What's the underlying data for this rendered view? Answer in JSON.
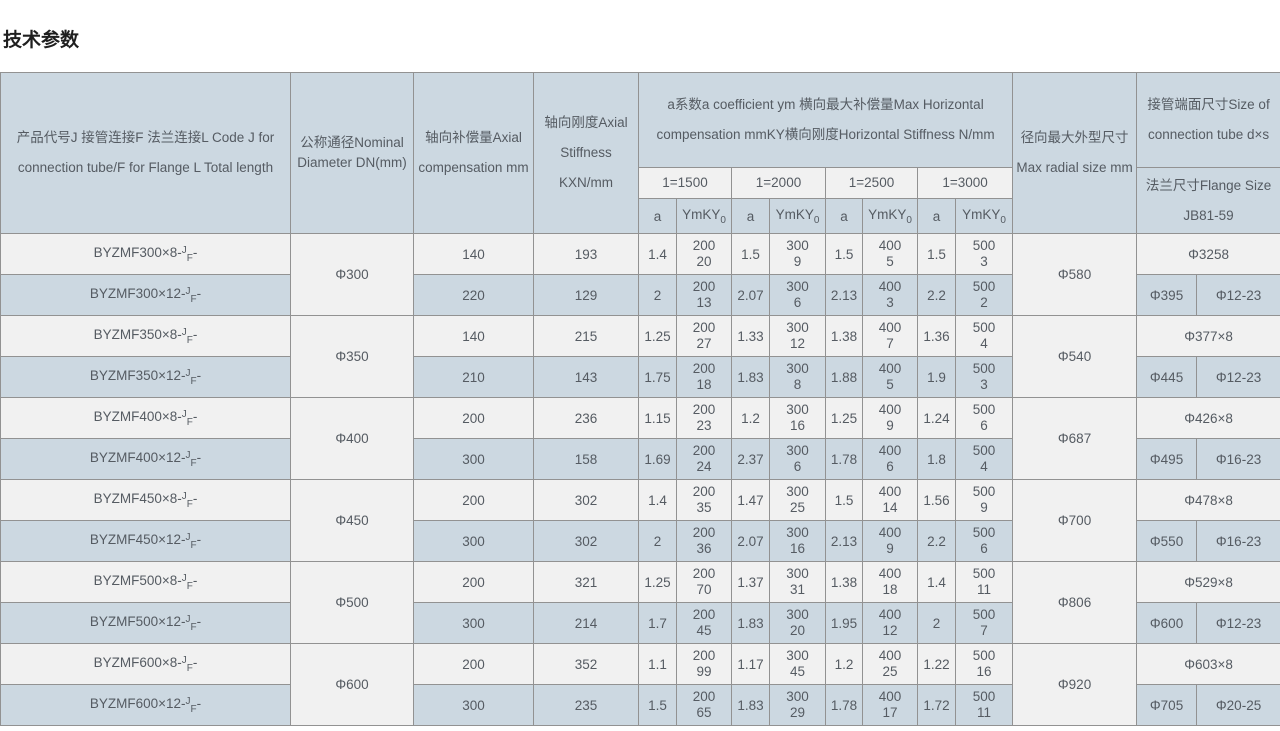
{
  "page_title": "技术参数",
  "colors": {
    "header_bg": "#ccd8e1",
    "row_light_bg": "#f1f1f1",
    "row_blue_bg": "#ccd8e1",
    "merged_cell_bg": "#f0f0f0",
    "border": "#929292",
    "text": "#555b62",
    "title_text": "#1f1f1f"
  },
  "table": {
    "header": {
      "col_product": "产品代号J 接管连接F 法兰连接L Code J for connection tube/F for Flange L Total length",
      "col_dn": "公称通径Nominal Diameter DN(mm)",
      "col_axial_comp": "轴向补偿量Axial compensation mm",
      "col_axial_stiff": "轴向刚度Axial Stiffness KXN/mm",
      "col_group": "a系数a coefficient ym 横向最大补偿量Max Horizontal compensation mmKY横向刚度Horizontal Stiffness N/mm",
      "col_radial": "径向最大外型尺寸 Max radial size mm",
      "col_tube": "接管端面尺寸Size of connection tube d×s",
      "col_flange": "法兰尺寸Flange Size JB81-59",
      "subgroups": [
        "1=1500",
        "1=2000",
        "1=2500",
        "1=3000"
      ],
      "sub_a": "a",
      "sub_ym_base": "YmKY",
      "sub_ym_sub": "0"
    },
    "groups": [
      {
        "dn": "Φ300",
        "radial": "Φ580",
        "tube": "Φ3258",
        "flange_d": "Φ395",
        "flange_holes": "Φ12-23",
        "rows": [
          {
            "code": {
              "text": "BYZMF300×8-",
              "sup": "J",
              "sub": "F",
              "tail": "-"
            },
            "axial_compensation": "140",
            "axial_stiffness": "193",
            "a": [
              "1.4",
              "1.5",
              "1.5",
              "1.5"
            ],
            "ym": [
              [
                "200",
                "20"
              ],
              [
                "300",
                "9"
              ],
              [
                "400",
                "5"
              ],
              [
                "500",
                "3"
              ]
            ]
          },
          {
            "code": {
              "text": "BYZMF300×12-",
              "sup": "J",
              "sub": "F",
              "tail": "-"
            },
            "axial_compensation": "220",
            "axial_stiffness": "129",
            "a": [
              "2",
              "2.07",
              "2.13",
              "2.2"
            ],
            "ym": [
              [
                "200",
                "13"
              ],
              [
                "300",
                "6"
              ],
              [
                "400",
                "3"
              ],
              [
                "500",
                "2"
              ]
            ]
          }
        ]
      },
      {
        "dn": "Φ350",
        "radial": "Φ540",
        "tube": "Φ377×8",
        "flange_d": "Φ445",
        "flange_holes": "Φ12-23",
        "rows": [
          {
            "code": {
              "text": "BYZMF350×8-",
              "sup": "J",
              "sub": "F",
              "tail": "-"
            },
            "axial_compensation": "140",
            "axial_stiffness": "215",
            "a": [
              "1.25",
              "1.33",
              "1.38",
              "1.36"
            ],
            "ym": [
              [
                "200",
                "27"
              ],
              [
                "300",
                "12"
              ],
              [
                "400",
                "7"
              ],
              [
                "500",
                "4"
              ]
            ]
          },
          {
            "code": {
              "text": "BYZMF350×12-",
              "sup": "J",
              "sub": "F",
              "tail": "-"
            },
            "axial_compensation": "210",
            "axial_stiffness": "143",
            "a": [
              "1.75",
              "1.83",
              "1.88",
              "1.9"
            ],
            "ym": [
              [
                "200",
                "18"
              ],
              [
                "300",
                "8"
              ],
              [
                "400",
                "5"
              ],
              [
                "500",
                "3"
              ]
            ]
          }
        ]
      },
      {
        "dn": "Φ400",
        "radial": "Φ687",
        "tube": "Φ426×8",
        "flange_d": "Φ495",
        "flange_holes": "Φ16-23",
        "rows": [
          {
            "code": {
              "text": "BYZMF400×8-",
              "sup": "J",
              "sub": "F",
              "tail": "-"
            },
            "axial_compensation": "200",
            "axial_stiffness": "236",
            "a": [
              "1.15",
              "1.2",
              "1.25",
              "1.24"
            ],
            "ym": [
              [
                "200",
                "23"
              ],
              [
                "300",
                "16"
              ],
              [
                "400",
                "9"
              ],
              [
                "500",
                "6"
              ]
            ]
          },
          {
            "code": {
              "text": "BYZMF400×12-",
              "sup": "J",
              "sub": "F",
              "tail": "-"
            },
            "axial_compensation": "300",
            "axial_stiffness": "158",
            "a": [
              "1.69",
              "2.37",
              "1.78",
              "1.8"
            ],
            "ym": [
              [
                "200",
                "24"
              ],
              [
                "300",
                "6"
              ],
              [
                "400",
                "6"
              ],
              [
                "500",
                "4"
              ]
            ]
          }
        ]
      },
      {
        "dn": "Φ450",
        "radial": "Φ700",
        "tube": "Φ478×8",
        "flange_d": "Φ550",
        "flange_holes": "Φ16-23",
        "rows": [
          {
            "code": {
              "text": "BYZMF450×8-",
              "sup": "J",
              "sub": "F",
              "tail": "-"
            },
            "axial_compensation": "200",
            "axial_stiffness": "302",
            "a": [
              "1.4",
              "1.47",
              "1.5",
              "1.56"
            ],
            "ym": [
              [
                "200",
                "35"
              ],
              [
                "300",
                "25"
              ],
              [
                "400",
                "14"
              ],
              [
                "500",
                "9"
              ]
            ]
          },
          {
            "code": {
              "text": "BYZMF450×12-",
              "sup": "J",
              "sub": "F",
              "tail": "-"
            },
            "axial_compensation": "300",
            "axial_stiffness": "302",
            "a": [
              "2",
              "2.07",
              "2.13",
              "2.2"
            ],
            "ym": [
              [
                "200",
                "36"
              ],
              [
                "300",
                "16"
              ],
              [
                "400",
                "9"
              ],
              [
                "500",
                "6"
              ]
            ]
          }
        ]
      },
      {
        "dn": "Φ500",
        "radial": "Φ806",
        "tube": "Φ529×8",
        "flange_d": "Φ600",
        "flange_holes": "Φ12-23",
        "rows": [
          {
            "code": {
              "text": "BYZMF500×8-",
              "sup": "J",
              "sub": "F",
              "tail": "-"
            },
            "axial_compensation": "200",
            "axial_stiffness": "321",
            "a": [
              "1.25",
              "1.37",
              "1.38",
              "1.4"
            ],
            "ym": [
              [
                "200",
                "70"
              ],
              [
                "300",
                "31"
              ],
              [
                "400",
                "18"
              ],
              [
                "500",
                "11"
              ]
            ]
          },
          {
            "code": {
              "text": "BYZMF500×12-",
              "sup": "J",
              "sub": "F",
              "tail": "-"
            },
            "axial_compensation": "300",
            "axial_stiffness": "214",
            "a": [
              "1.7",
              "1.83",
              "1.95",
              "2"
            ],
            "ym": [
              [
                "200",
                "45"
              ],
              [
                "300",
                "20"
              ],
              [
                "400",
                "12"
              ],
              [
                "500",
                "7"
              ]
            ]
          }
        ]
      },
      {
        "dn": "Φ600",
        "radial": "Φ920",
        "tube": "Φ603×8",
        "flange_d": "Φ705",
        "flange_holes": "Φ20-25",
        "rows": [
          {
            "code": {
              "text": "BYZMF600×8-",
              "sup": "J",
              "sub": "F",
              "tail": "-"
            },
            "axial_compensation": "200",
            "axial_stiffness": "352",
            "a": [
              "1.1",
              "1.17",
              "1.2",
              "1.22"
            ],
            "ym": [
              [
                "200",
                "99"
              ],
              [
                "300",
                "45"
              ],
              [
                "400",
                "25"
              ],
              [
                "500",
                "16"
              ]
            ]
          },
          {
            "code": {
              "text": "BYZMF600×12-",
              "sup": "J",
              "sub": "F",
              "tail": "-"
            },
            "axial_compensation": "300",
            "axial_stiffness": "235",
            "a": [
              "1.5",
              "1.83",
              "1.78",
              "1.72"
            ],
            "ym": [
              [
                "200",
                "65"
              ],
              [
                "300",
                "29"
              ],
              [
                "400",
                "17"
              ],
              [
                "500",
                "11"
              ]
            ]
          }
        ]
      }
    ]
  }
}
